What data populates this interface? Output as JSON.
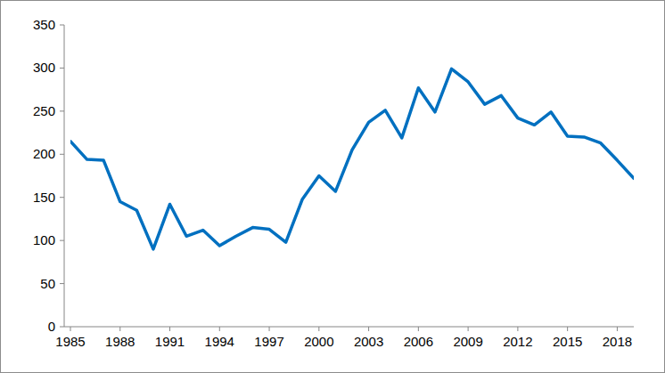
{
  "chart_data": {
    "type": "line",
    "x": [
      1985,
      1986,
      1987,
      1988,
      1989,
      1990,
      1991,
      1992,
      1993,
      1994,
      1995,
      1996,
      1997,
      1998,
      1999,
      2000,
      2001,
      2002,
      2003,
      2004,
      2005,
      2006,
      2007,
      2008,
      2009,
      2010,
      2011,
      2012,
      2013,
      2014,
      2015,
      2016,
      2017,
      2018,
      2019
    ],
    "values": [
      215,
      194,
      193,
      145,
      135,
      90,
      142,
      105,
      112,
      94,
      105,
      115,
      113,
      98,
      148,
      175,
      157,
      205,
      237,
      251,
      219,
      277,
      249,
      299,
      284,
      258,
      268,
      242,
      234,
      249,
      221,
      220,
      213,
      193,
      172
    ],
    "color": "#0070c0",
    "xlim": [
      1985,
      2019
    ],
    "xticks": [
      1985,
      1988,
      1991,
      1994,
      1997,
      2000,
      2003,
      2006,
      2009,
      2012,
      2015,
      2018
    ],
    "ylim": [
      0,
      350
    ],
    "yticks": [
      0,
      50,
      100,
      150,
      200,
      250,
      300,
      350
    ],
    "grid": false
  }
}
